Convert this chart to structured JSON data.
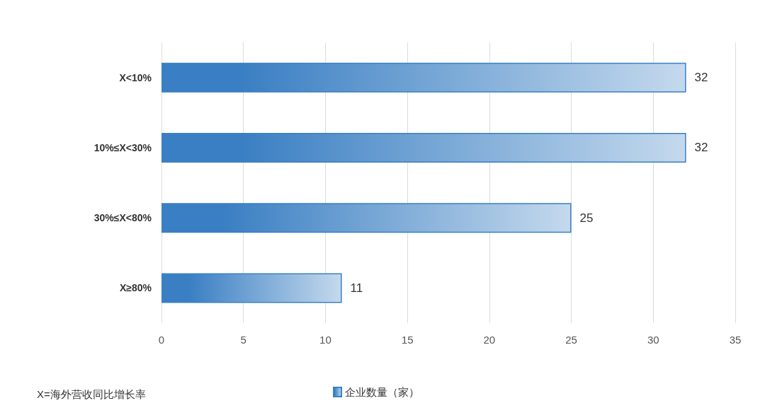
{
  "chart_data": {
    "type": "bar",
    "orientation": "horizontal",
    "categories": [
      "X<10%",
      "10%≤X<30%",
      "30%≤X<80%",
      "X≥80%"
    ],
    "series": [
      {
        "name": "企业数量（家）",
        "color": "#3a7fc3",
        "values": [
          32,
          32,
          25,
          11
        ]
      }
    ],
    "xlim": [
      0,
      35
    ],
    "xticks": [
      0,
      5,
      10,
      15,
      20,
      25,
      30,
      35
    ],
    "grid": "x",
    "legend": "bottom",
    "data_labels": true,
    "annotations": [
      "X=海外营收同比增长率"
    ]
  }
}
